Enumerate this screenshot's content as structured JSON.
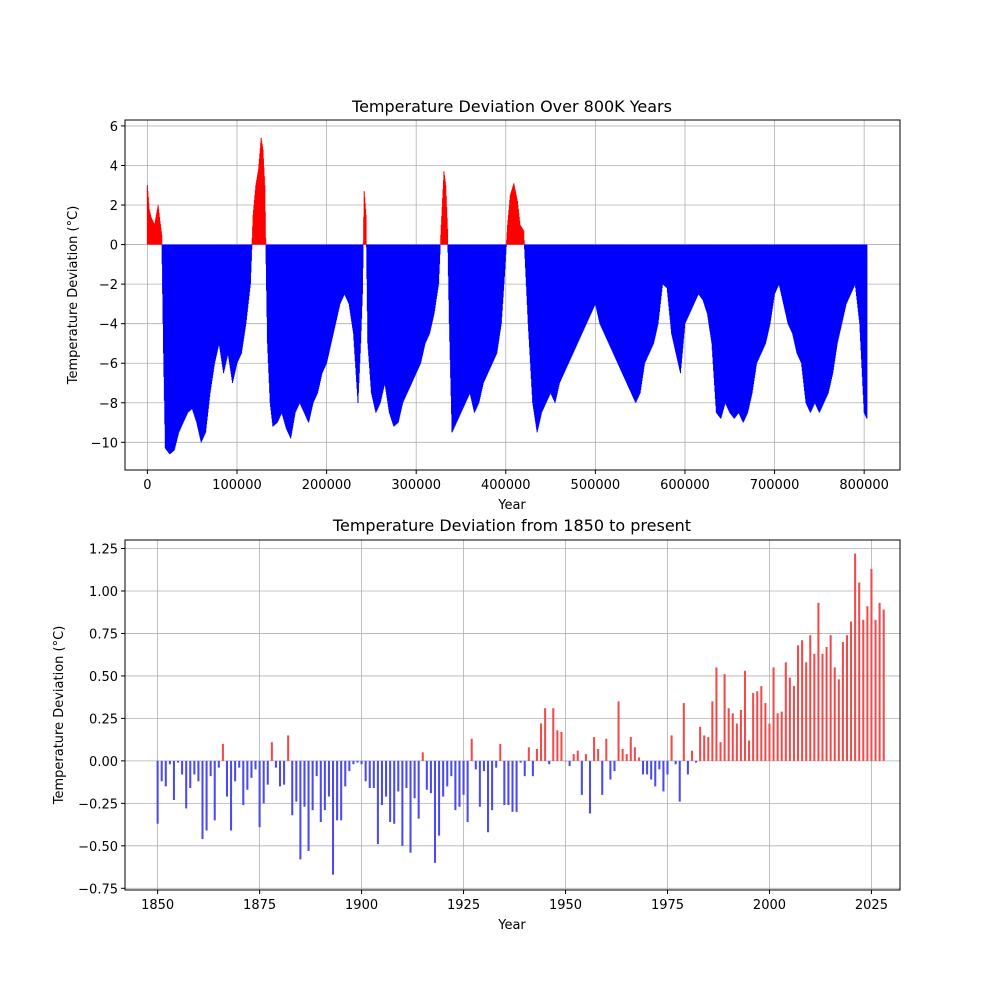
{
  "chart_data": [
    {
      "type": "bar",
      "title": "Temperature Deviation Over 800K Years",
      "xlabel": "Year",
      "ylabel": "Temperature Deviation (°C)",
      "xlim": [
        -25000,
        840000
      ],
      "ylim": [
        -11.4,
        6.3
      ],
      "xticks": [
        0,
        100000,
        200000,
        300000,
        400000,
        500000,
        600000,
        700000,
        800000
      ],
      "yticks": [
        -10,
        -8,
        -6,
        -4,
        -2,
        0,
        2,
        4,
        6
      ],
      "grid": true,
      "colors": {
        "positive": "#ff0000",
        "negative": "#0000ff"
      },
      "x": [
        0,
        2000,
        4000,
        6000,
        8000,
        10000,
        12000,
        14000,
        16000,
        18000,
        20000,
        25000,
        30000,
        35000,
        40000,
        45000,
        50000,
        55000,
        60000,
        65000,
        70000,
        75000,
        80000,
        85000,
        90000,
        95000,
        100000,
        105000,
        110000,
        115000,
        118000,
        121000,
        124000,
        127000,
        129000,
        131000,
        134000,
        137000,
        140000,
        145000,
        150000,
        155000,
        160000,
        165000,
        170000,
        175000,
        180000,
        185000,
        190000,
        195000,
        200000,
        205000,
        210000,
        215000,
        220000,
        225000,
        230000,
        235000,
        238000,
        240000,
        242000,
        244000,
        246000,
        250000,
        255000,
        260000,
        265000,
        270000,
        275000,
        280000,
        285000,
        290000,
        295000,
        300000,
        305000,
        310000,
        315000,
        320000,
        325000,
        328000,
        331000,
        333000,
        335000,
        337000,
        340000,
        345000,
        350000,
        355000,
        360000,
        365000,
        370000,
        375000,
        380000,
        385000,
        390000,
        395000,
        398000,
        402000,
        405000,
        409000,
        413000,
        416000,
        420000,
        425000,
        430000,
        435000,
        440000,
        445000,
        450000,
        455000,
        460000,
        465000,
        470000,
        475000,
        480000,
        485000,
        490000,
        495000,
        500000,
        505000,
        510000,
        515000,
        520000,
        525000,
        530000,
        535000,
        540000,
        545000,
        550000,
        555000,
        560000,
        565000,
        570000,
        575000,
        580000,
        585000,
        590000,
        595000,
        600000,
        605000,
        610000,
        615000,
        620000,
        625000,
        630000,
        635000,
        640000,
        645000,
        650000,
        655000,
        660000,
        665000,
        670000,
        675000,
        680000,
        685000,
        690000,
        695000,
        700000,
        705000,
        710000,
        715000,
        720000,
        725000,
        730000,
        735000,
        740000,
        745000,
        750000,
        755000,
        760000,
        765000,
        770000,
        775000,
        780000,
        785000,
        790000,
        795000,
        800000,
        803000
      ],
      "y": [
        3.0,
        1.8,
        1.4,
        1.2,
        1.0,
        1.5,
        2.0,
        1.2,
        0.5,
        -5.5,
        -10.3,
        -10.6,
        -10.4,
        -9.5,
        -9.0,
        -8.5,
        -8.3,
        -9.0,
        -10.0,
        -9.5,
        -7.5,
        -6.0,
        -5.0,
        -6.5,
        -5.5,
        -7.0,
        -6.0,
        -5.5,
        -4.0,
        -2.0,
        1.5,
        3.0,
        3.8,
        5.4,
        4.8,
        3.0,
        -5.0,
        -8.0,
        -9.2,
        -9.0,
        -8.5,
        -9.3,
        -9.8,
        -8.5,
        -8.0,
        -8.5,
        -9.0,
        -8.0,
        -7.5,
        -6.5,
        -6.0,
        -5.0,
        -4.0,
        -3.0,
        -2.5,
        -3.0,
        -4.5,
        -8.0,
        -5.0,
        -2.5,
        2.7,
        1.5,
        -5.0,
        -7.5,
        -8.5,
        -8.0,
        -7.0,
        -8.5,
        -9.2,
        -9.0,
        -8.0,
        -7.5,
        -7.0,
        -6.5,
        -6.0,
        -5.0,
        -4.5,
        -3.5,
        -2.0,
        1.0,
        3.7,
        3.0,
        0.8,
        -4.0,
        -9.5,
        -9.0,
        -8.5,
        -8.0,
        -7.5,
        -8.5,
        -8.0,
        -7.0,
        -6.5,
        -6.0,
        -5.5,
        -4.0,
        -2.0,
        1.0,
        2.5,
        3.1,
        2.2,
        1.0,
        0.7,
        -4.0,
        -8.0,
        -9.5,
        -8.5,
        -8.0,
        -7.5,
        -8.0,
        -7.0,
        -6.5,
        -6.0,
        -5.5,
        -5.0,
        -4.5,
        -4.0,
        -3.5,
        -3.0,
        -4.0,
        -4.5,
        -5.0,
        -5.5,
        -6.0,
        -6.5,
        -7.0,
        -7.5,
        -8.0,
        -7.5,
        -6.0,
        -5.5,
        -5.0,
        -4.0,
        -2.0,
        -2.2,
        -4.5,
        -5.5,
        -6.5,
        -4.0,
        -3.5,
        -3.0,
        -2.5,
        -2.8,
        -3.5,
        -5.0,
        -8.5,
        -8.8,
        -8.0,
        -8.5,
        -8.8,
        -8.5,
        -9.0,
        -8.5,
        -7.5,
        -6.0,
        -5.5,
        -5.0,
        -4.0,
        -2.5,
        -2.0,
        -3.0,
        -4.0,
        -4.5,
        -5.5,
        -6.0,
        -8.0,
        -8.5,
        -8.0,
        -8.5,
        -8.0,
        -7.5,
        -6.5,
        -5.0,
        -4.0,
        -3.0,
        -2.5,
        -2.0,
        -4.0,
        -8.5,
        -8.8
      ]
    },
    {
      "type": "bar",
      "title": "Temperature Deviation from 1850 to present",
      "xlabel": "Year",
      "ylabel": "Temperature Deviation (°C)",
      "xlim": [
        1842,
        2032
      ],
      "ylim": [
        -0.76,
        1.3
      ],
      "xticks": [
        1850,
        1875,
        1900,
        1925,
        1950,
        1975,
        2000,
        2025
      ],
      "yticks": [
        -0.75,
        -0.5,
        -0.25,
        0.0,
        0.25,
        0.5,
        0.75,
        1.0,
        1.25
      ],
      "ytick_labels": [
        "−0.75",
        "−0.50",
        "−0.25",
        "0.00",
        "0.25",
        "0.50",
        "0.75",
        "1.00",
        "1.25"
      ],
      "grid": true,
      "colors": {
        "positive": "#f04a4a",
        "negative": "#4a4af0"
      },
      "x_start": 1850,
      "values": [
        -0.37,
        -0.12,
        -0.15,
        -0.02,
        -0.23,
        -0.01,
        -0.08,
        -0.28,
        -0.16,
        -0.08,
        -0.12,
        -0.46,
        -0.41,
        -0.09,
        -0.35,
        -0.04,
        0.1,
        -0.21,
        -0.41,
        -0.12,
        -0.04,
        -0.26,
        -0.17,
        -0.1,
        -0.05,
        -0.39,
        -0.25,
        -0.14,
        0.11,
        -0.04,
        -0.15,
        -0.14,
        0.15,
        -0.32,
        -0.24,
        -0.58,
        -0.27,
        -0.53,
        -0.29,
        -0.09,
        -0.36,
        -0.29,
        -0.21,
        -0.67,
        -0.35,
        -0.35,
        -0.15,
        -0.06,
        -0.02,
        -0.01,
        -0.02,
        -0.12,
        -0.16,
        -0.16,
        -0.49,
        -0.26,
        -0.21,
        -0.36,
        -0.37,
        -0.18,
        -0.5,
        -0.16,
        -0.54,
        -0.22,
        -0.34,
        0.05,
        -0.17,
        -0.19,
        -0.6,
        -0.44,
        -0.21,
        -0.15,
        -0.09,
        -0.29,
        -0.27,
        -0.2,
        -0.36,
        0.13,
        -0.05,
        -0.27,
        -0.06,
        -0.42,
        -0.29,
        -0.04,
        0.1,
        -0.26,
        -0.26,
        -0.3,
        -0.3,
        -0.01,
        -0.09,
        0.08,
        -0.09,
        0.07,
        0.22,
        0.31,
        -0.02,
        0.31,
        0.18,
        0.17,
        0.0,
        -0.03,
        0.04,
        0.06,
        -0.2,
        0.04,
        -0.31,
        0.14,
        0.07,
        -0.2,
        0.13,
        -0.11,
        -0.06,
        0.35,
        0.07,
        0.04,
        0.14,
        0.08,
        0.02,
        -0.08,
        -0.08,
        -0.11,
        -0.15,
        -0.05,
        -0.18,
        -0.08,
        0.15,
        -0.02,
        -0.24,
        0.34,
        -0.08,
        0.06,
        -0.01,
        0.2,
        0.15,
        0.14,
        0.35,
        0.55,
        0.11,
        0.51,
        0.31,
        0.28,
        0.22,
        0.3,
        0.53,
        0.12,
        0.4,
        0.41,
        0.44,
        0.34,
        0.22,
        0.55,
        0.28,
        0.29,
        0.58,
        0.49,
        0.44,
        0.68,
        0.71,
        0.58,
        0.74,
        0.63,
        0.93,
        0.63,
        0.67,
        0.74,
        0.55,
        0.48,
        0.7,
        0.74,
        0.82,
        1.22,
        1.05,
        0.83,
        0.91,
        1.13,
        0.83,
        0.93,
        0.89
      ]
    }
  ]
}
